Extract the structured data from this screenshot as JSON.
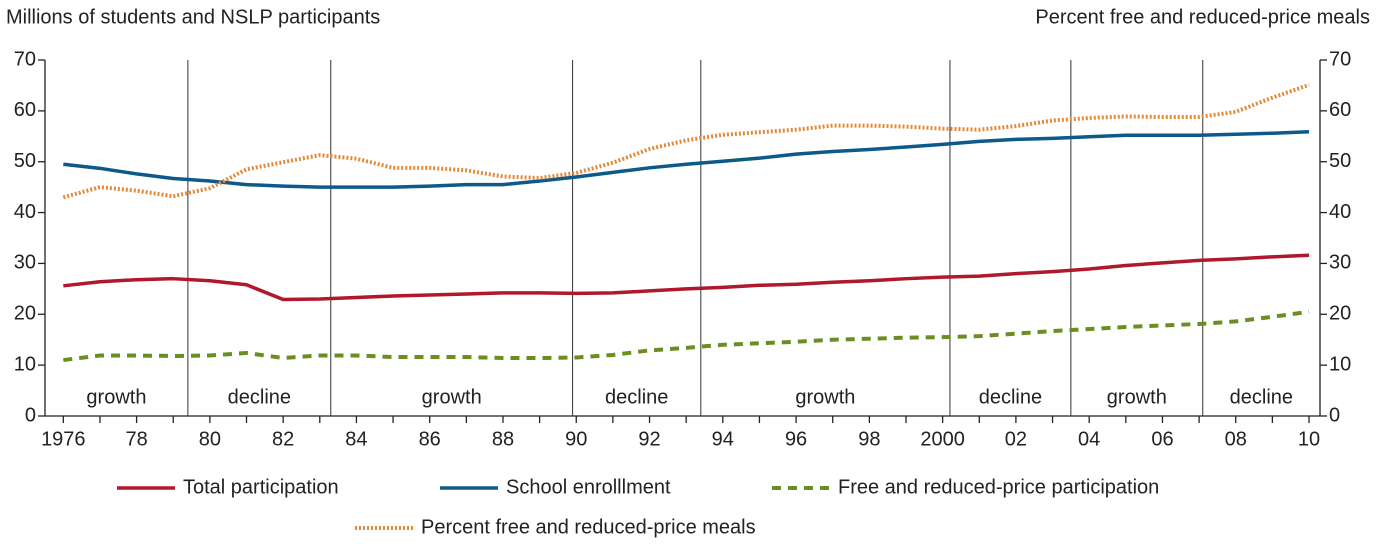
{
  "chart_data": {
    "type": "line",
    "y_label": "Millions of students and NSLP participants",
    "y2_label": "Percent free and reduced-price meals",
    "x": [
      1976,
      1977,
      1978,
      1979,
      1980,
      1981,
      1982,
      1983,
      1984,
      1985,
      1986,
      1987,
      1988,
      1989,
      1990,
      1991,
      1992,
      1993,
      1994,
      1995,
      1996,
      1997,
      1998,
      1999,
      2000,
      2001,
      2002,
      2003,
      2004,
      2005,
      2006,
      2007,
      2008,
      2009,
      2010
    ],
    "xlim": [
      1975.5,
      2010.3
    ],
    "xticks": [
      1976,
      {
        "value": 1978,
        "label": "78"
      },
      {
        "value": 1980,
        "label": "80"
      },
      {
        "value": 1982,
        "label": "82"
      },
      {
        "value": 1984,
        "label": "84"
      },
      {
        "value": 1986,
        "label": "86"
      },
      {
        "value": 1988,
        "label": "88"
      },
      {
        "value": 1990,
        "label": "90"
      },
      {
        "value": 1992,
        "label": "92"
      },
      {
        "value": 1994,
        "label": "94"
      },
      {
        "value": 1996,
        "label": "96"
      },
      {
        "value": 1998,
        "label": "98"
      },
      2000,
      {
        "value": 2002,
        "label": "02"
      },
      {
        "value": 2004,
        "label": "04"
      },
      {
        "value": 2006,
        "label": "06"
      },
      {
        "value": 2008,
        "label": "08"
      },
      {
        "value": 2010,
        "label": "10"
      }
    ],
    "xminorticks": [
      1977,
      1979,
      1981,
      1983,
      1985,
      1987,
      1989,
      1991,
      1993,
      1995,
      1997,
      1999,
      2001,
      2003,
      2005,
      2007,
      2009
    ],
    "ylim": [
      0,
      70
    ],
    "yticks": [
      0,
      10,
      20,
      30,
      40,
      50,
      60,
      70
    ],
    "y2lim": [
      0,
      70
    ],
    "y2ticks": [
      0,
      10,
      20,
      30,
      40,
      50,
      60,
      70
    ],
    "dividers": [
      1979.4,
      1983.3,
      1989.9,
      1993.4,
      2000.2,
      2003.5,
      2007.1
    ],
    "period_labels": [
      "growth",
      "decline",
      "growth",
      "decline",
      "growth",
      "decline",
      "growth",
      "decline"
    ],
    "series": [
      {
        "name": "Total participation",
        "color": "#b0182b",
        "style": "solid",
        "values": [
          25.6,
          26.4,
          26.8,
          27.0,
          26.6,
          25.8,
          22.9,
          23.0,
          23.3,
          23.6,
          23.8,
          24.0,
          24.2,
          24.2,
          24.1,
          24.2,
          24.6,
          25.0,
          25.3,
          25.7,
          25.9,
          26.3,
          26.6,
          27.0,
          27.3,
          27.5,
          28.0,
          28.4,
          28.9,
          29.6,
          30.1,
          30.6,
          30.9,
          31.3,
          31.6
        ]
      },
      {
        "name": "School enrolllment",
        "color": "#0d5a8a",
        "style": "solid",
        "values": [
          49.5,
          48.7,
          47.6,
          46.7,
          46.2,
          45.5,
          45.2,
          45.0,
          45.0,
          45.0,
          45.2,
          45.5,
          45.5,
          46.2,
          47.0,
          47.9,
          48.8,
          49.5,
          50.1,
          50.7,
          51.5,
          52.0,
          52.4,
          52.9,
          53.4,
          54.0,
          54.4,
          54.6,
          54.9,
          55.2,
          55.2,
          55.2,
          55.4,
          55.6,
          55.9
        ]
      },
      {
        "name": "Free and reduced-price participation",
        "color": "#6b8e23",
        "style": "dashed",
        "values": [
          11.0,
          11.9,
          11.9,
          11.8,
          11.9,
          12.4,
          11.4,
          11.9,
          11.9,
          11.6,
          11.6,
          11.6,
          11.4,
          11.4,
          11.5,
          12.0,
          12.9,
          13.4,
          14.0,
          14.3,
          14.6,
          15.0,
          15.2,
          15.4,
          15.5,
          15.7,
          16.2,
          16.7,
          17.1,
          17.5,
          17.8,
          18.1,
          18.6,
          19.5,
          20.5
        ]
      },
      {
        "name": "Percent free and reduced-price meals",
        "color": "#e08a3a",
        "style": "dotted",
        "axis": "y2",
        "values": [
          43.0,
          45.0,
          44.3,
          43.2,
          44.8,
          48.5,
          49.9,
          51.3,
          50.6,
          48.8,
          48.8,
          48.3,
          47.1,
          46.8,
          47.8,
          49.8,
          52.5,
          54.2,
          55.3,
          55.8,
          56.3,
          57.1,
          57.1,
          56.9,
          56.5,
          56.3,
          57.0,
          58.1,
          58.6,
          58.9,
          58.8,
          58.8,
          59.8,
          62.6,
          65.1
        ]
      }
    ]
  }
}
